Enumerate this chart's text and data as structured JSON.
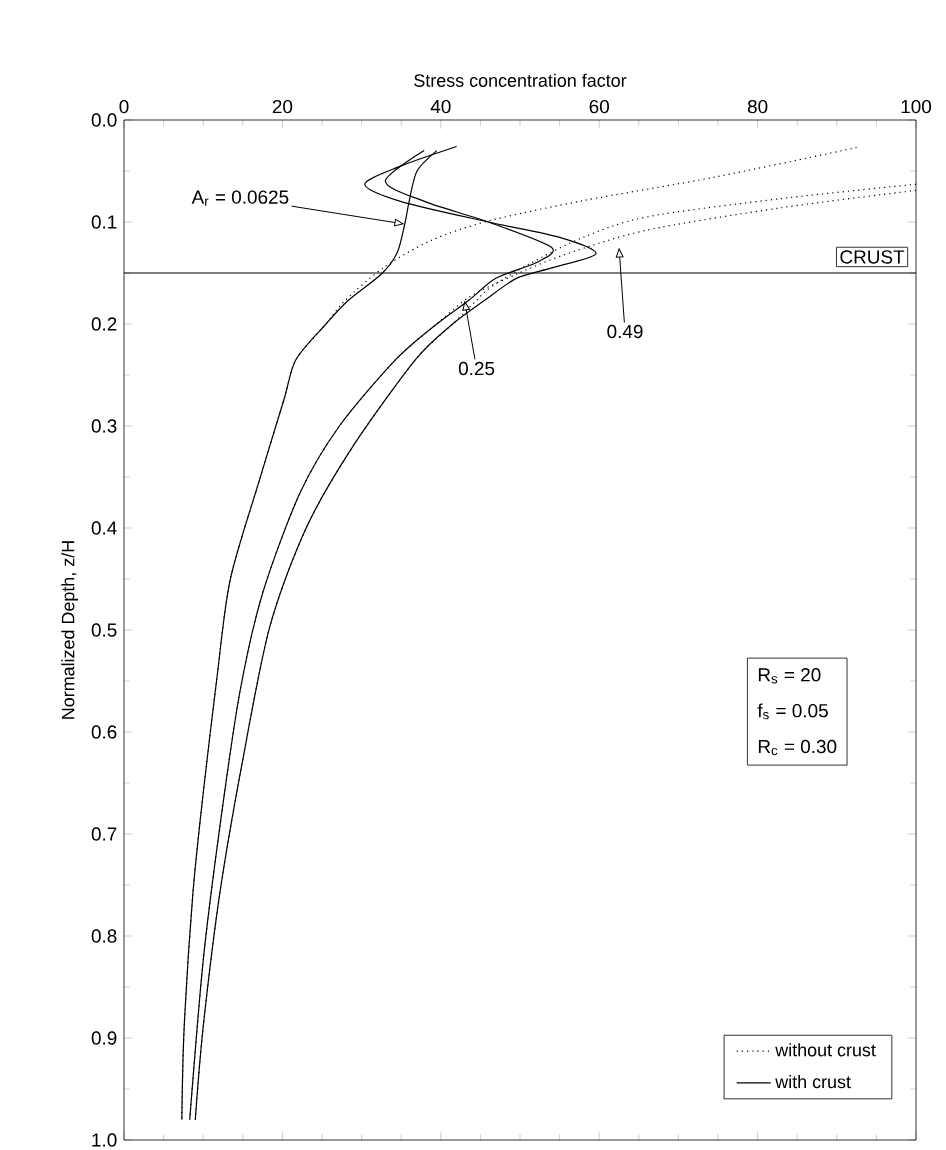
{
  "chart_data": {
    "type": "line",
    "xlabel": "Stress concentration factor",
    "ylabel": "Normalized Depth, z/H",
    "xlim": [
      0,
      100
    ],
    "xticks": [
      0,
      20,
      40,
      60,
      80,
      100
    ],
    "ylim": [
      1.0,
      0.0
    ],
    "yticks": [
      {
        "value": 0,
        "label": "0.0"
      },
      0.1,
      0.2,
      0.3,
      0.4,
      0.5,
      0.6,
      0.7,
      0.8,
      0.9,
      {
        "value": 1,
        "label": "1.0"
      }
    ],
    "legend": "bottom right",
    "series": [
      {
        "name": "without crust",
        "color": "#000000",
        "line_style": "dotted",
        "x": [
          92.5,
          74.6,
          58,
          46,
          38.8,
          32.9,
          27.9,
          25.5,
          21.7,
          20.2,
          17.1,
          13.4,
          11.7,
          10,
          8.7,
          7.6,
          7.3
        ],
        "values": [
          0.027,
          0.056,
          0.079,
          0.099,
          0.118,
          0.144,
          0.177,
          0.2,
          0.235,
          0.274,
          0.353,
          0.451,
          0.549,
          0.66,
          0.758,
          0.889,
          0.98
        ]
      },
      {
        "color": "#000000",
        "line_style": "dotted",
        "x": [
          100,
          83,
          66,
          56,
          49.6,
          43.7,
          39.5,
          34.3,
          27.2,
          22.2,
          17.5,
          14.6,
          12.1,
          10,
          8.3
        ],
        "values": [
          0.069,
          0.086,
          0.108,
          0.131,
          0.151,
          0.173,
          0.2,
          0.235,
          0.3,
          0.366,
          0.464,
          0.562,
          0.693,
          0.824,
          0.98
        ]
      },
      {
        "color": "#000000",
        "line_style": "dotted",
        "x": [
          100,
          83,
          66,
          58,
          51.2,
          46.3,
          44.5,
          41.5,
          36.8,
          28.9,
          23,
          18.4,
          15,
          12.1,
          10,
          9
        ],
        "values": [
          0.063,
          0.077,
          0.095,
          0.115,
          0.141,
          0.164,
          0.177,
          0.2,
          0.235,
          0.32,
          0.4,
          0.497,
          0.627,
          0.758,
          0.889,
          0.98
        ]
      },
      {
        "name": "with crust",
        "color": "#000000",
        "line_style": "solid",
        "x": [
          39.5,
          37,
          36,
          35.5,
          34.5,
          32.5,
          28.3,
          25.5,
          21.7,
          20.2,
          17.1,
          13.4,
          11.7,
          10,
          8.7,
          7.6,
          7.3
        ],
        "values": [
          0.03,
          0.05,
          0.08,
          0.1,
          0.13,
          0.151,
          0.177,
          0.2,
          0.235,
          0.274,
          0.353,
          0.451,
          0.549,
          0.66,
          0.758,
          0.889,
          0.98
        ]
      },
      {
        "color": "#000000",
        "line_style": "solid",
        "x": [
          37.9,
          33,
          38,
          46,
          54,
          52,
          47,
          43.5,
          39.5,
          34.3,
          27.2,
          22.2,
          17.5,
          14.6,
          12.1,
          10,
          8.3
        ],
        "values": [
          0.03,
          0.06,
          0.08,
          0.1,
          0.125,
          0.14,
          0.155,
          0.177,
          0.2,
          0.235,
          0.3,
          0.366,
          0.464,
          0.562,
          0.693,
          0.824,
          0.98
        ]
      },
      {
        "color": "#000000",
        "line_style": "solid",
        "x": [
          42,
          35,
          30.4,
          35,
          46,
          55,
          59.6,
          54,
          49.6,
          45.5,
          41.5,
          36.8,
          28.9,
          23,
          18.4,
          15,
          12.1,
          10,
          9
        ],
        "values": [
          0.026,
          0.045,
          0.063,
          0.08,
          0.1,
          0.115,
          0.131,
          0.145,
          0.155,
          0.177,
          0.2,
          0.235,
          0.32,
          0.4,
          0.497,
          0.627,
          0.758,
          0.889,
          0.98
        ]
      }
    ],
    "ref_lines": [
      {
        "axis": "y",
        "value": 0.15,
        "label": "CRUST"
      }
    ],
    "annotations": [
      {
        "text": "A$_{r}$ = 0.0625",
        "x": 35.4,
        "y": 0.102
      },
      {
        "text": "0.49",
        "x": 62.5,
        "y": 0.125
      },
      {
        "text": "0.25",
        "x": 43,
        "y": 0.177
      },
      "R$_{s}$ = 20",
      "f$_{s}$ = 0.05",
      "R$_{c}$ = 0.30"
    ]
  }
}
